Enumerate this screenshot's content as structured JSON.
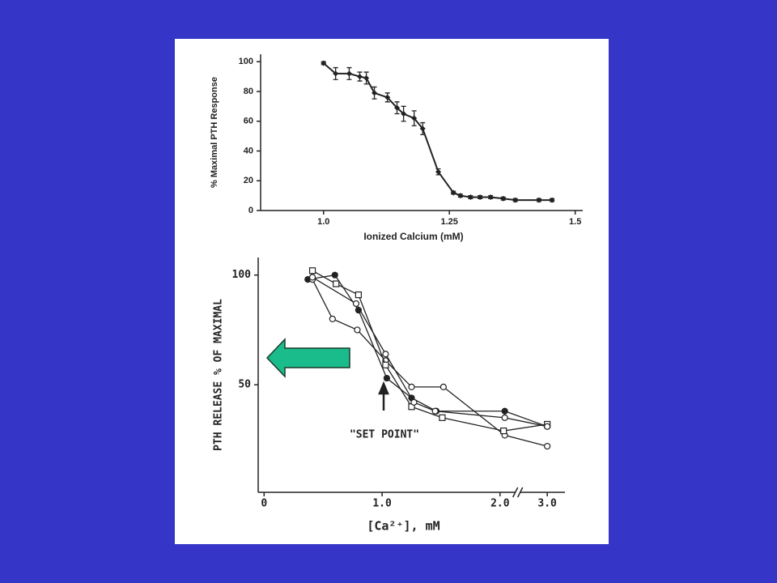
{
  "chart_data": [
    {
      "type": "line",
      "ylabel": "% Maximal PTH Response",
      "xlabel": "Ionized Calcium (mM)",
      "x": [
        1.0,
        1.024,
        1.051,
        1.072,
        1.085,
        1.101,
        1.127,
        1.146,
        1.159,
        1.18,
        1.197,
        1.228,
        1.258,
        1.272,
        1.292,
        1.311,
        1.332,
        1.357,
        1.381,
        1.428,
        1.454
      ],
      "series": [
        {
          "color": "#222222",
          "marker": "diamond",
          "values": [
            99,
            92,
            92,
            90,
            89,
            79,
            76,
            69,
            65,
            62,
            55,
            26,
            12,
            10,
            9,
            9,
            9,
            8,
            7,
            7,
            7
          ],
          "errors": [
            1,
            4,
            4,
            3,
            4,
            4,
            3,
            4,
            5,
            5,
            4,
            2,
            1,
            1,
            1,
            1,
            1,
            1,
            1,
            1,
            1
          ]
        }
      ],
      "xlim": [
        0.875,
        1.515
      ],
      "xticks": [
        {
          "value": 1,
          "label": "1.0"
        },
        1.25,
        1.5
      ],
      "ylim": [
        0,
        105
      ],
      "yticks": [
        0,
        20,
        40,
        60,
        80,
        100
      ]
    },
    {
      "type": "line",
      "ylabel": "PTH RELEASE % OF MAXIMAL",
      "xlabel": "[Ca²⁺], mM",
      "annotations": [
        "\"SET POINT\""
      ],
      "series": [
        {
          "color": "#222222",
          "marker": "filled-circle",
          "x": [
            0.37,
            0.6,
            0.8,
            1.04,
            1.25,
            1.46,
            2.04,
            3.0
          ],
          "values": [
            98,
            100,
            84,
            53,
            44,
            38,
            38,
            31
          ]
        },
        {
          "color": "#222222",
          "marker": "open-circle",
          "x": [
            0.41,
            0.58,
            0.79,
            1.03,
            1.25,
            1.52,
            2.04,
            3.0
          ],
          "values": [
            98,
            80,
            75,
            61,
            49,
            49,
            27,
            22
          ]
        },
        {
          "color": "#222222",
          "marker": "open-square",
          "x": [
            0.41,
            0.61,
            0.8,
            1.03,
            1.25,
            1.51,
            2.03,
            3.0
          ],
          "values": [
            102,
            96,
            91,
            59,
            40,
            35,
            29,
            32
          ]
        },
        {
          "color": "#222222",
          "marker": "open-circle",
          "x": [
            0.41,
            0.78,
            1.03,
            1.27,
            1.45,
            2.04,
            3.0
          ],
          "values": [
            99,
            87,
            64,
            42,
            38,
            35,
            31
          ]
        }
      ],
      "xlim": [
        -0.05,
        3.15
      ],
      "x_break": [
        2.15,
        2.75
      ],
      "xticks": [
        0,
        {
          "value": 1,
          "label": "1.0"
        },
        {
          "value": 2,
          "label": "2.0"
        },
        {
          "value": 3,
          "label": "3.0"
        }
      ],
      "ylim": [
        1,
        108
      ],
      "yticks": [
        50,
        100
      ]
    }
  ]
}
